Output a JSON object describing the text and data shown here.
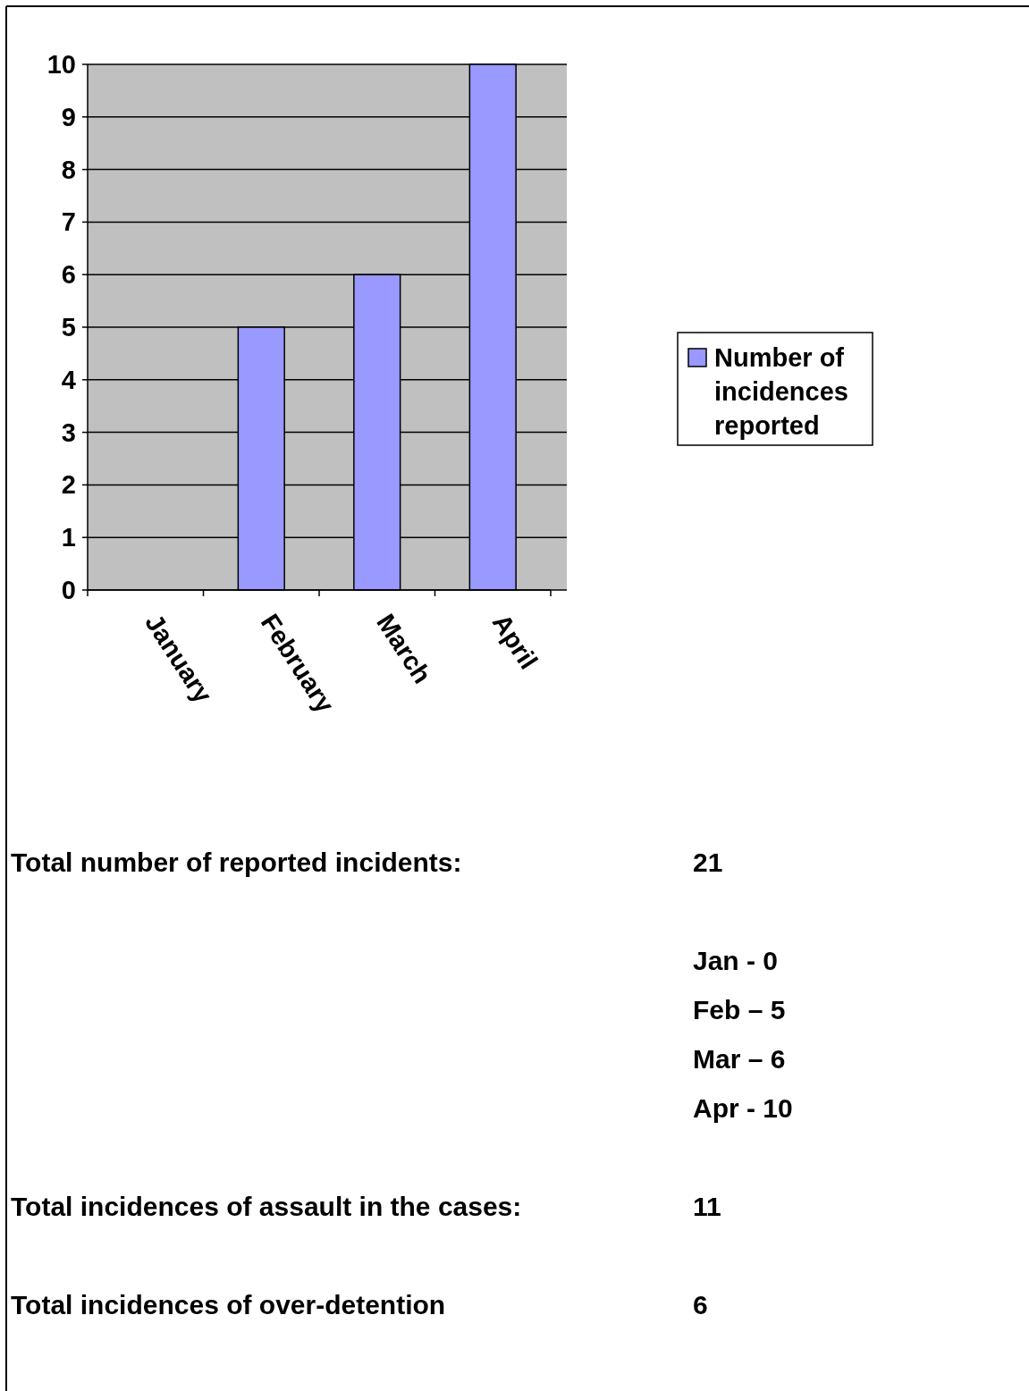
{
  "chart_data": {
    "type": "bar",
    "categories": [
      "January",
      "February",
      "March",
      "April"
    ],
    "series": [
      {
        "name": "Number of incidences reported",
        "color": "#9999ff",
        "values": [
          0,
          5,
          6,
          10
        ]
      }
    ],
    "ylim": [
      0,
      10
    ],
    "yticks": [
      0,
      1,
      2,
      3,
      4,
      5,
      6,
      7,
      8,
      9,
      10
    ],
    "grid": "y",
    "legend": "right",
    "annotations": [
      "Total number of reported incidents:",
      "21",
      "Jan - 0",
      "Feb – 5",
      "Mar – 6",
      "Apr - 10",
      "Total incidences of assault in the cases:",
      "11",
      "Total incidences of over-detention",
      "6"
    ]
  }
}
